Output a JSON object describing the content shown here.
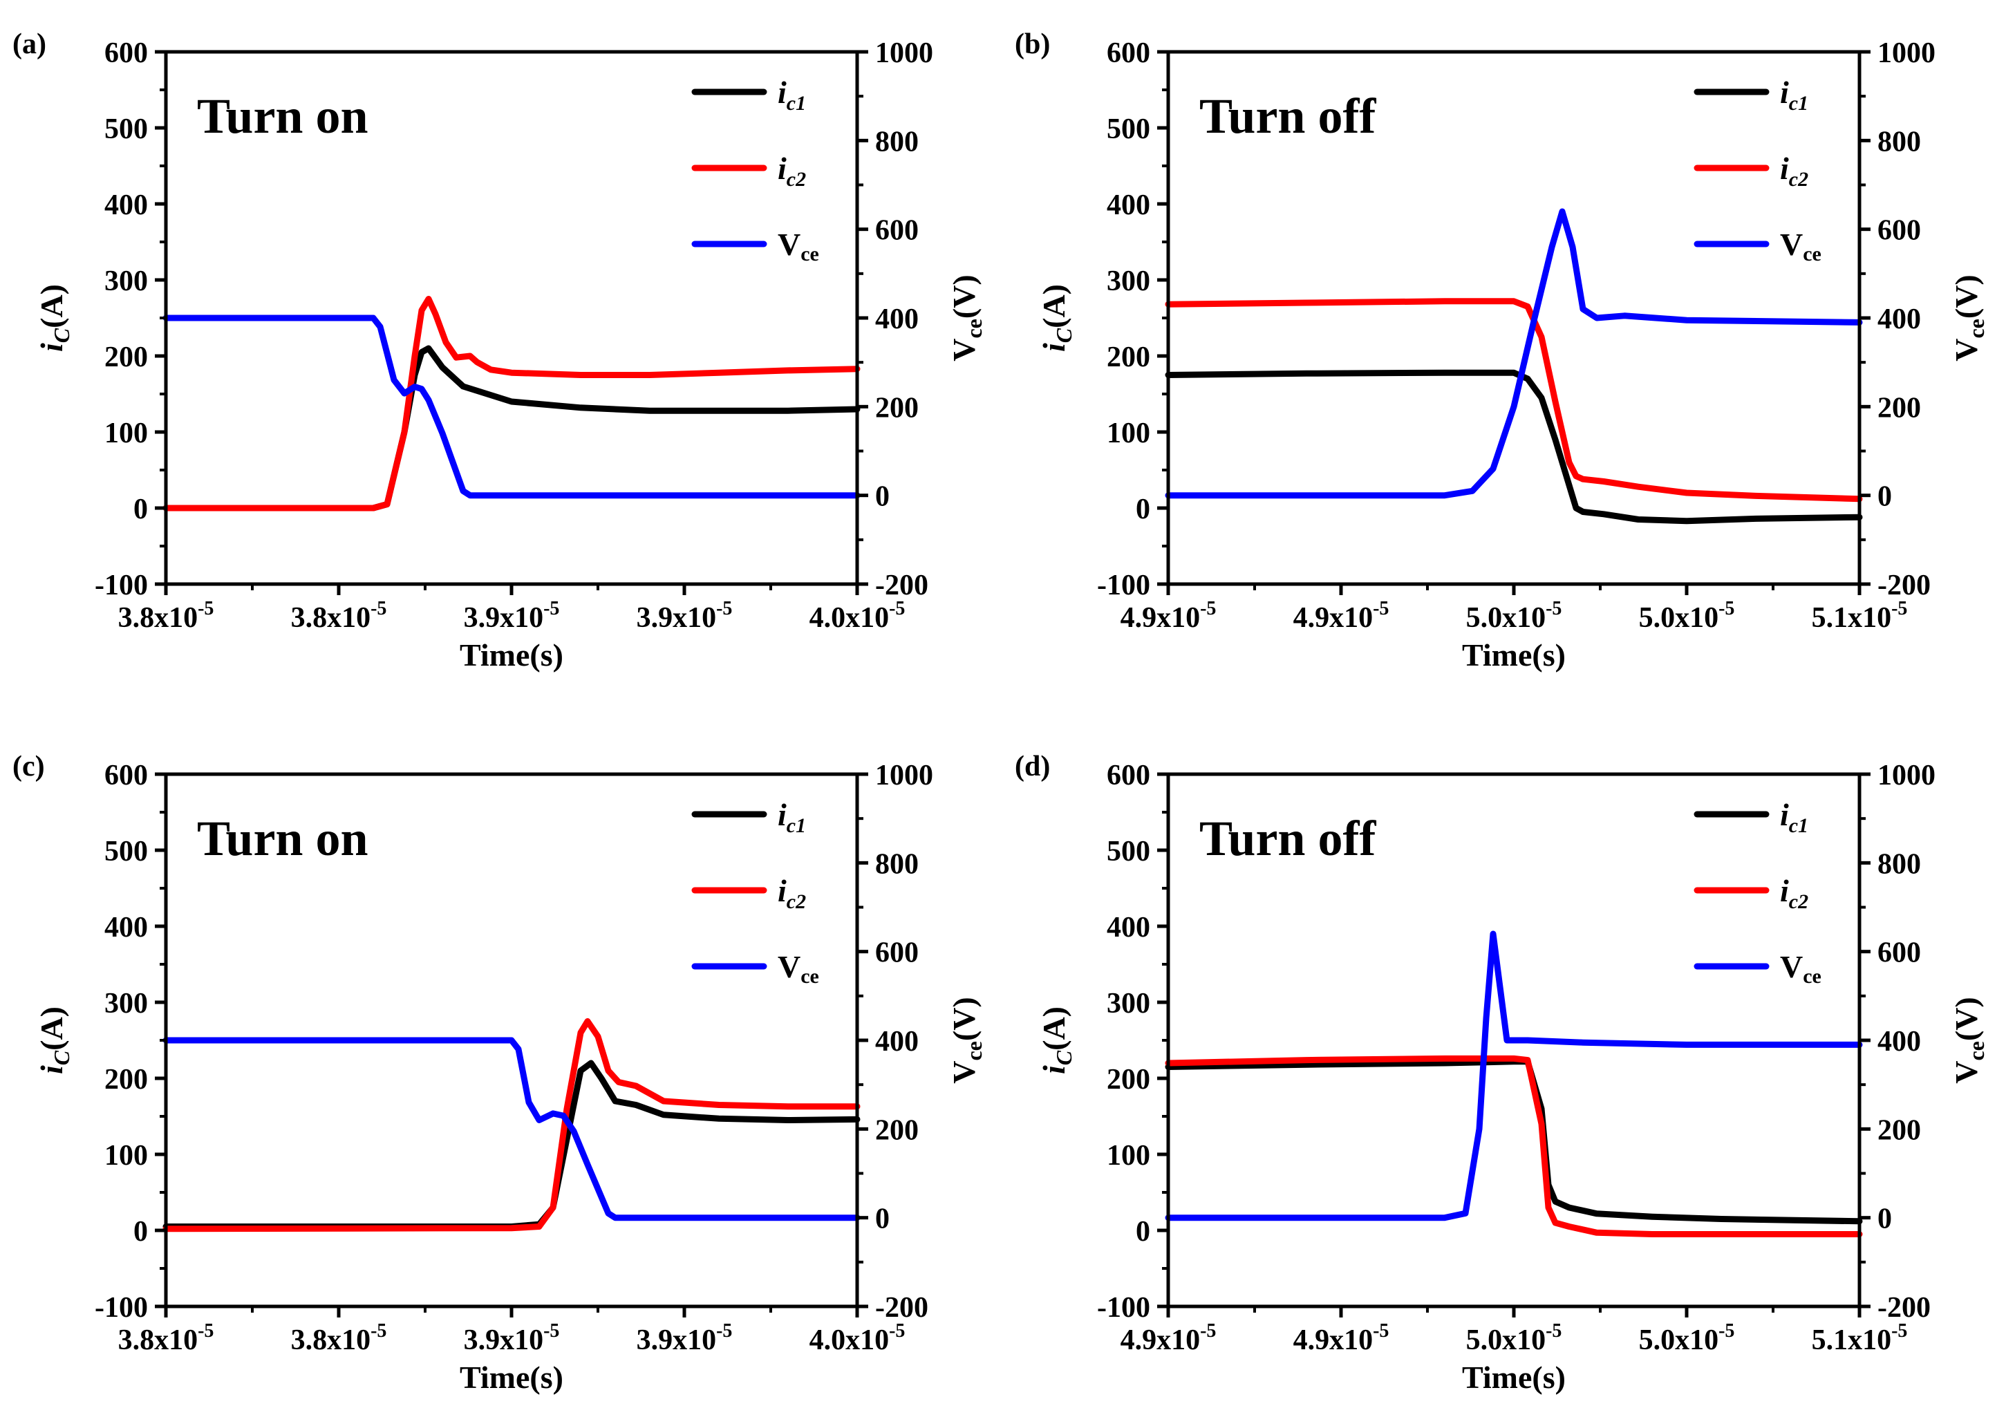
{
  "figure": {
    "background": "#ffffff",
    "series_colors": {
      "ic1": "#000000",
      "ic2": "#ff0000",
      "Vce": "#0000ff"
    }
  },
  "chart_data": [
    {
      "panel_label": "(a)",
      "annotation": "Turn on",
      "type": "line",
      "xlabel": "Time(s)",
      "ylabel_left": {
        "main": "i",
        "sub": "C",
        "rest": "(A)"
      },
      "ylabel_right": {
        "main": "V",
        "sub": "ce",
        "rest": "(V)"
      },
      "x_tick_labels": [
        {
          "mant": "3.8x10",
          "exp": "-5"
        },
        {
          "mant": "3.8x10",
          "exp": "-5"
        },
        {
          "mant": "3.9x10",
          "exp": "-5"
        },
        {
          "mant": "3.9x10",
          "exp": "-5"
        },
        {
          "mant": "4.0x10",
          "exp": "-5"
        }
      ],
      "xlim": [
        0,
        1
      ],
      "ylim_left": [
        -100,
        600
      ],
      "yticks_left": [
        -100,
        0,
        100,
        200,
        300,
        400,
        500,
        600
      ],
      "ylim_right": [
        -200,
        1000
      ],
      "yticks_right": [
        -200,
        0,
        200,
        400,
        600,
        800,
        1000
      ],
      "legend": [
        {
          "key": "ic1",
          "main": "i",
          "sub": "c1"
        },
        {
          "key": "ic2",
          "main": "i",
          "sub": "c2"
        },
        {
          "key": "Vce",
          "main": "V",
          "sub": "ce"
        }
      ],
      "series": [
        {
          "key": "ic1",
          "name": "i_c1",
          "axis": "left",
          "x": [
            0,
            0.3,
            0.32,
            0.345,
            0.36,
            0.37,
            0.38,
            0.4,
            0.43,
            0.5,
            0.6,
            0.7,
            0.8,
            0.9,
            1.0
          ],
          "y": [
            0,
            0,
            5,
            100,
            175,
            205,
            210,
            185,
            160,
            140,
            132,
            128,
            128,
            128,
            130
          ]
        },
        {
          "key": "ic2",
          "name": "i_c2",
          "axis": "left",
          "x": [
            0,
            0.3,
            0.32,
            0.345,
            0.36,
            0.37,
            0.38,
            0.39,
            0.405,
            0.42,
            0.44,
            0.45,
            0.47,
            0.5,
            0.6,
            0.7,
            0.8,
            0.9,
            1.0
          ],
          "y": [
            0,
            0,
            5,
            100,
            200,
            260,
            275,
            255,
            218,
            198,
            200,
            192,
            182,
            178,
            175,
            175,
            178,
            181,
            183
          ]
        },
        {
          "key": "Vce",
          "name": "V_ce",
          "axis": "right",
          "x": [
            0,
            0.3,
            0.31,
            0.33,
            0.345,
            0.36,
            0.37,
            0.38,
            0.4,
            0.43,
            0.44,
            0.5,
            0.7,
            1.0
          ],
          "y": [
            400,
            400,
            380,
            260,
            230,
            245,
            240,
            215,
            140,
            10,
            0,
            0,
            0,
            0
          ]
        }
      ]
    },
    {
      "panel_label": "(b)",
      "annotation": "Turn off",
      "type": "line",
      "xlabel": "Time(s)",
      "ylabel_left": {
        "main": "i",
        "sub": "C",
        "rest": "(A)"
      },
      "ylabel_right": {
        "main": "V",
        "sub": "ce",
        "rest": "(V)"
      },
      "x_tick_labels": [
        {
          "mant": "4.9x10",
          "exp": "-5"
        },
        {
          "mant": "4.9x10",
          "exp": "-5"
        },
        {
          "mant": "5.0x10",
          "exp": "-5"
        },
        {
          "mant": "5.0x10",
          "exp": "-5"
        },
        {
          "mant": "5.1x10",
          "exp": "-5"
        }
      ],
      "xlim": [
        0,
        1
      ],
      "ylim_left": [
        -100,
        600
      ],
      "yticks_left": [
        -100,
        0,
        100,
        200,
        300,
        400,
        500,
        600
      ],
      "ylim_right": [
        -200,
        1000
      ],
      "yticks_right": [
        -200,
        0,
        200,
        400,
        600,
        800,
        1000
      ],
      "legend": [
        {
          "key": "ic1",
          "main": "i",
          "sub": "c1"
        },
        {
          "key": "ic2",
          "main": "i",
          "sub": "c2"
        },
        {
          "key": "Vce",
          "main": "V",
          "sub": "ce"
        }
      ],
      "series": [
        {
          "key": "ic1",
          "name": "i_c1",
          "axis": "left",
          "x": [
            0,
            0.2,
            0.4,
            0.5,
            0.52,
            0.54,
            0.56,
            0.58,
            0.59,
            0.6,
            0.63,
            0.68,
            0.75,
            0.85,
            1.0
          ],
          "y": [
            175,
            177,
            178,
            178,
            170,
            145,
            90,
            30,
            0,
            -5,
            -8,
            -15,
            -17,
            -14,
            -12
          ]
        },
        {
          "key": "ic2",
          "name": "i_c2",
          "axis": "left",
          "x": [
            0,
            0.2,
            0.4,
            0.5,
            0.52,
            0.54,
            0.56,
            0.58,
            0.59,
            0.6,
            0.63,
            0.68,
            0.75,
            0.85,
            1.0
          ],
          "y": [
            268,
            270,
            272,
            272,
            265,
            225,
            140,
            60,
            42,
            38,
            35,
            28,
            20,
            16,
            12
          ]
        },
        {
          "key": "Vce",
          "name": "V_ce",
          "axis": "right",
          "x": [
            0,
            0.4,
            0.44,
            0.47,
            0.5,
            0.53,
            0.555,
            0.57,
            0.585,
            0.6,
            0.62,
            0.66,
            0.75,
            1.0
          ],
          "y": [
            0,
            0,
            10,
            60,
            200,
            400,
            560,
            640,
            560,
            420,
            400,
            405,
            395,
            390
          ]
        }
      ]
    },
    {
      "panel_label": "(c)",
      "annotation": "Turn on",
      "type": "line",
      "xlabel": "Time(s)",
      "ylabel_left": {
        "main": "i",
        "sub": "C",
        "rest": "(A)"
      },
      "ylabel_right": {
        "main": "V",
        "sub": "ce",
        "rest": "(V)"
      },
      "x_tick_labels": [
        {
          "mant": "3.8x10",
          "exp": "-5"
        },
        {
          "mant": "3.8x10",
          "exp": "-5"
        },
        {
          "mant": "3.9x10",
          "exp": "-5"
        },
        {
          "mant": "3.9x10",
          "exp": "-5"
        },
        {
          "mant": "4.0x10",
          "exp": "-5"
        }
      ],
      "xlim": [
        0,
        1
      ],
      "ylim_left": [
        -100,
        600
      ],
      "yticks_left": [
        -100,
        0,
        100,
        200,
        300,
        400,
        500,
        600
      ],
      "ylim_right": [
        -200,
        1000
      ],
      "yticks_right": [
        -200,
        0,
        200,
        400,
        600,
        800,
        1000
      ],
      "legend": [
        {
          "key": "ic1",
          "main": "i",
          "sub": "c1"
        },
        {
          "key": "ic2",
          "main": "i",
          "sub": "c2"
        },
        {
          "key": "Vce",
          "main": "V",
          "sub": "ce"
        }
      ],
      "series": [
        {
          "key": "ic1",
          "name": "i_c1",
          "axis": "left",
          "x": [
            0,
            0.5,
            0.54,
            0.56,
            0.58,
            0.6,
            0.615,
            0.63,
            0.65,
            0.68,
            0.72,
            0.8,
            0.9,
            1.0
          ],
          "y": [
            5,
            5,
            8,
            30,
            120,
            210,
            220,
            200,
            170,
            165,
            152,
            147,
            145,
            146
          ]
        },
        {
          "key": "ic2",
          "name": "i_c2",
          "axis": "left",
          "x": [
            0,
            0.5,
            0.54,
            0.56,
            0.58,
            0.6,
            0.61,
            0.625,
            0.64,
            0.655,
            0.68,
            0.72,
            0.8,
            0.9,
            1.0
          ],
          "y": [
            2,
            3,
            5,
            30,
            160,
            260,
            275,
            255,
            210,
            195,
            190,
            170,
            165,
            163,
            163
          ]
        },
        {
          "key": "Vce",
          "name": "V_ce",
          "axis": "right",
          "x": [
            0,
            0.5,
            0.51,
            0.525,
            0.54,
            0.56,
            0.575,
            0.59,
            0.61,
            0.64,
            0.65,
            0.7,
            1.0
          ],
          "y": [
            400,
            400,
            380,
            260,
            220,
            235,
            230,
            195,
            120,
            10,
            0,
            0,
            0
          ]
        }
      ]
    },
    {
      "panel_label": "(d)",
      "annotation": "Turn off",
      "type": "line",
      "xlabel": "Time(s)",
      "ylabel_left": {
        "main": "i",
        "sub": "C",
        "rest": "(A)"
      },
      "ylabel_right": {
        "main": "V",
        "sub": "ce",
        "rest": "(V)"
      },
      "x_tick_labels": [
        {
          "mant": "4.9x10",
          "exp": "-5"
        },
        {
          "mant": "4.9x10",
          "exp": "-5"
        },
        {
          "mant": "5.0x10",
          "exp": "-5"
        },
        {
          "mant": "5.0x10",
          "exp": "-5"
        },
        {
          "mant": "5.1x10",
          "exp": "-5"
        }
      ],
      "xlim": [
        0,
        1
      ],
      "ylim_left": [
        -100,
        600
      ],
      "yticks_left": [
        -100,
        0,
        100,
        200,
        300,
        400,
        500,
        600
      ],
      "ylim_right": [
        -200,
        1000
      ],
      "yticks_right": [
        -200,
        0,
        200,
        400,
        600,
        800,
        1000
      ],
      "legend": [
        {
          "key": "ic1",
          "main": "i",
          "sub": "c1"
        },
        {
          "key": "ic2",
          "main": "i",
          "sub": "c2"
        },
        {
          "key": "Vce",
          "main": "V",
          "sub": "ce"
        }
      ],
      "series": [
        {
          "key": "ic1",
          "name": "i_c1",
          "axis": "left",
          "x": [
            0,
            0.2,
            0.4,
            0.5,
            0.52,
            0.54,
            0.55,
            0.56,
            0.58,
            0.62,
            0.7,
            0.8,
            1.0
          ],
          "y": [
            215,
            218,
            220,
            222,
            222,
            160,
            60,
            38,
            30,
            22,
            18,
            15,
            12
          ]
        },
        {
          "key": "ic2",
          "name": "i_c2",
          "axis": "left",
          "x": [
            0,
            0.2,
            0.4,
            0.5,
            0.52,
            0.54,
            0.55,
            0.56,
            0.58,
            0.62,
            0.7,
            0.8,
            1.0
          ],
          "y": [
            220,
            224,
            226,
            226,
            224,
            140,
            30,
            10,
            5,
            -3,
            -5,
            -5,
            -5
          ]
        },
        {
          "key": "Vce",
          "name": "V_ce",
          "axis": "right",
          "x": [
            0,
            0.4,
            0.43,
            0.45,
            0.46,
            0.47,
            0.48,
            0.49,
            0.5,
            0.52,
            0.6,
            0.75,
            1.0
          ],
          "y": [
            0,
            0,
            10,
            200,
            450,
            640,
            520,
            400,
            400,
            400,
            395,
            390,
            390
          ]
        }
      ]
    }
  ]
}
